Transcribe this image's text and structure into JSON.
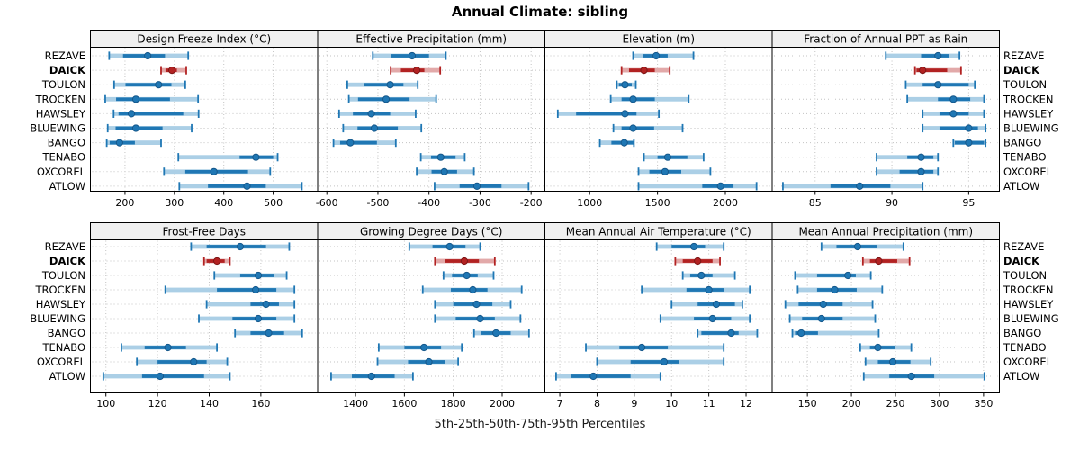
{
  "title": "Annual Climate: sibling",
  "caption": "5th-25th-50th-75th-95th Percentiles",
  "stations": [
    "REZAVE",
    "DAICK",
    "TOULON",
    "TROCKEN",
    "HAWSLEY",
    "BLUEWING",
    "BANGO",
    "TENABO",
    "OXCOREL",
    "ATLOW"
  ],
  "highlight_station": "DAICK",
  "colors": {
    "normal": "#1f77b4",
    "normal_light": "#abcfe6",
    "normal_edge": "#15578a",
    "highlight": "#b22222",
    "highlight_light": "#e2a9a9",
    "highlight_edge": "#7c1616",
    "strip_bg": "#f0f0f0",
    "panel_border": "#000000",
    "grid": "#c3c3c3",
    "text": "#000000"
  },
  "chart_data": {
    "type": "scatter",
    "subtype": "percentile-interval-dotplot",
    "title": "Annual Climate: sibling",
    "xlabel": "5th-25th-50th-75th-95th Percentiles",
    "legend_position": "none",
    "grid": "dotted",
    "percentiles": [
      5,
      25,
      50,
      75,
      95
    ],
    "layout": {
      "rows": 2,
      "cols": 4
    },
    "panels": [
      {
        "id": "design-freeze-index",
        "row": 0,
        "col": 0,
        "title": "Design Freeze Index (°C)",
        "ticks": [
          200,
          300,
          400,
          500
        ],
        "xlim": [
          130,
          590
        ],
        "values": [
          [
            168,
            196,
            246,
            281,
            328
          ],
          [
            273,
            282,
            295,
            305,
            324
          ],
          [
            178,
            201,
            268,
            294,
            322
          ],
          [
            160,
            182,
            222,
            291,
            348
          ],
          [
            177,
            187,
            213,
            318,
            349
          ],
          [
            165,
            181,
            222,
            276,
            335
          ],
          [
            163,
            169,
            189,
            220,
            273
          ],
          [
            308,
            432,
            465,
            500,
            509
          ],
          [
            279,
            322,
            380,
            449,
            494
          ],
          [
            310,
            368,
            447,
            485,
            558
          ]
        ]
      },
      {
        "id": "effective-precipitation",
        "row": 0,
        "col": 1,
        "title": "Effective Precipitation (mm)",
        "ticks": [
          -600,
          -500,
          -400,
          -300,
          -200
        ],
        "xlim": [
          -618,
          -173
        ],
        "values": [
          [
            -510,
            -474,
            -433,
            -400,
            -367
          ],
          [
            -475,
            -455,
            -424,
            -409,
            -378
          ],
          [
            -560,
            -527,
            -476,
            -450,
            -422
          ],
          [
            -557,
            -539,
            -484,
            -438,
            -386
          ],
          [
            -576,
            -549,
            -513,
            -476,
            -426
          ],
          [
            -568,
            -540,
            -507,
            -461,
            -415
          ],
          [
            -587,
            -574,
            -554,
            -502,
            -465
          ],
          [
            -416,
            -396,
            -377,
            -348,
            -330
          ],
          [
            -424,
            -395,
            -370,
            -345,
            -312
          ],
          [
            -389,
            -340,
            -306,
            -258,
            -205
          ]
        ]
      },
      {
        "id": "elevation",
        "row": 0,
        "col": 2,
        "title": "Elevation (m)",
        "ticks": [
          1000,
          1500,
          2000
        ],
        "xlim": [
          670,
          2345
        ],
        "values": [
          [
            1320,
            1390,
            1490,
            1575,
            1765
          ],
          [
            1235,
            1290,
            1400,
            1480,
            1590
          ],
          [
            1200,
            1215,
            1260,
            1310,
            1340
          ],
          [
            1155,
            1235,
            1320,
            1480,
            1730
          ],
          [
            765,
            900,
            1260,
            1345,
            1510
          ],
          [
            1175,
            1235,
            1320,
            1475,
            1685
          ],
          [
            1075,
            1160,
            1255,
            1320,
            1326
          ],
          [
            1400,
            1500,
            1575,
            1720,
            1840
          ],
          [
            1360,
            1440,
            1555,
            1675,
            1890
          ],
          [
            1360,
            1830,
            1965,
            2060,
            2230
          ]
        ]
      },
      {
        "id": "fraction-annual-ppt-as-rain",
        "row": 0,
        "col": 3,
        "title": "Fraction of Annual PPT as Rain",
        "ticks": [
          85,
          90,
          95
        ],
        "xlim": [
          82.2,
          97.0
        ],
        "values": [
          [
            89.6,
            91.9,
            93.0,
            93.7,
            94.4
          ],
          [
            91.5,
            91.6,
            92.0,
            93.6,
            94.5
          ],
          [
            90.9,
            92.0,
            93.0,
            95.0,
            95.4
          ],
          [
            91.0,
            93.0,
            94.0,
            95.1,
            96.0
          ],
          [
            92.0,
            93.1,
            94.0,
            95.0,
            96.0
          ],
          [
            92.0,
            93.1,
            95.0,
            95.6,
            96.1
          ],
          [
            94.0,
            94.1,
            95.0,
            96.0,
            96.1
          ],
          [
            89.0,
            91.0,
            91.9,
            92.7,
            93.0
          ],
          [
            89.0,
            90.5,
            91.9,
            92.7,
            93.0
          ],
          [
            82.9,
            86.0,
            87.9,
            89.9,
            92.0
          ]
        ]
      },
      {
        "id": "frost-free-days",
        "row": 1,
        "col": 0,
        "title": "Frost-Free Days",
        "ticks": [
          100,
          120,
          140,
          160
        ],
        "xlim": [
          94,
          182
        ],
        "values": [
          [
            133,
            139,
            152,
            162,
            171
          ],
          [
            138,
            139,
            143,
            146,
            148
          ],
          [
            142,
            152,
            159,
            165,
            170
          ],
          [
            123,
            143,
            158,
            166,
            173
          ],
          [
            139,
            156,
            162,
            167,
            173
          ],
          [
            136,
            149,
            159,
            166,
            173
          ],
          [
            150,
            156,
            163,
            169,
            176
          ],
          [
            106,
            115,
            124,
            131,
            143
          ],
          [
            112,
            120,
            134,
            139,
            147
          ],
          [
            99,
            114,
            121,
            138,
            148
          ]
        ]
      },
      {
        "id": "growing-degree-days",
        "row": 1,
        "col": 1,
        "title": "Growing Degree Days (°C)",
        "ticks": [
          1400,
          1600,
          1800,
          2000
        ],
        "xlim": [
          1245,
          2175
        ],
        "values": [
          [
            1620,
            1715,
            1785,
            1850,
            1910
          ],
          [
            1725,
            1765,
            1845,
            1905,
            1970
          ],
          [
            1760,
            1795,
            1855,
            1900,
            1965
          ],
          [
            1675,
            1790,
            1880,
            1940,
            2080
          ],
          [
            1725,
            1800,
            1895,
            1960,
            2035
          ],
          [
            1725,
            1810,
            1910,
            1970,
            2075
          ],
          [
            1885,
            1915,
            1975,
            2035,
            2110
          ],
          [
            1495,
            1600,
            1680,
            1750,
            1835
          ],
          [
            1490,
            1615,
            1700,
            1765,
            1820
          ],
          [
            1300,
            1385,
            1465,
            1560,
            1635
          ]
        ]
      },
      {
        "id": "mean-annual-air-temperature",
        "row": 1,
        "col": 2,
        "title": "Mean Annual Air Temperature (°C)",
        "ticks": [
          7,
          8,
          9,
          10,
          11,
          12
        ],
        "xlim": [
          6.6,
          12.7
        ],
        "values": [
          [
            9.6,
            10.0,
            10.6,
            10.9,
            11.4
          ],
          [
            10.1,
            10.3,
            10.7,
            11.1,
            11.3
          ],
          [
            10.3,
            10.5,
            10.8,
            11.1,
            11.7
          ],
          [
            9.2,
            10.4,
            11.0,
            11.4,
            12.1
          ],
          [
            10.0,
            10.7,
            11.2,
            11.7,
            11.9
          ],
          [
            9.7,
            10.6,
            11.1,
            11.6,
            12.1
          ],
          [
            10.7,
            10.8,
            11.6,
            11.8,
            12.3
          ],
          [
            7.7,
            8.6,
            9.2,
            9.9,
            11.4
          ],
          [
            8.0,
            8.9,
            9.8,
            10.2,
            11.4
          ],
          [
            6.9,
            7.3,
            7.9,
            8.9,
            9.7
          ]
        ]
      },
      {
        "id": "mean-annual-precipitation",
        "row": 1,
        "col": 3,
        "title": "Mean Annual Precipitation (mm)",
        "ticks": [
          150,
          200,
          250,
          300,
          350
        ],
        "xlim": [
          110,
          368
        ],
        "values": [
          [
            166,
            183,
            207,
            229,
            259
          ],
          [
            213,
            221,
            231,
            252,
            266
          ],
          [
            136,
            161,
            196,
            205,
            222
          ],
          [
            139,
            161,
            181,
            206,
            235
          ],
          [
            125,
            140,
            168,
            190,
            224
          ],
          [
            130,
            144,
            166,
            190,
            227
          ],
          [
            133,
            136,
            143,
            162,
            231
          ],
          [
            210,
            221,
            230,
            250,
            268
          ],
          [
            216,
            230,
            247,
            267,
            290
          ],
          [
            214,
            243,
            268,
            294,
            351
          ]
        ]
      }
    ]
  }
}
